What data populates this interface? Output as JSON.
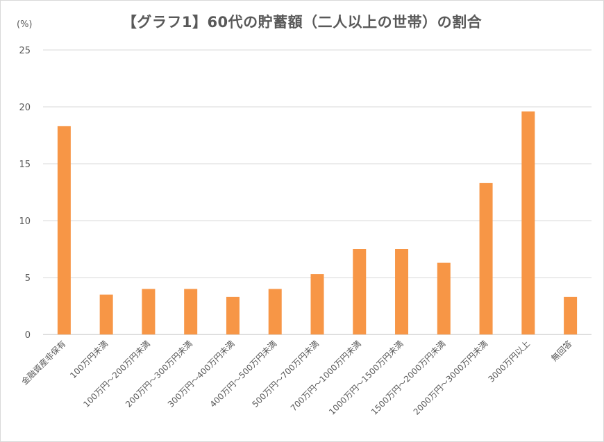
{
  "chart_data": {
    "type": "bar",
    "title": "【グラフ1】60代の貯蓄額（二人以上の世帯）の割合",
    "unit_label": "(%)",
    "categories": [
      "金融資産非保有",
      "100万円未満",
      "100万円～200万円未満",
      "200万円～300万円未満",
      "300万円～400万円未満",
      "400万円～500万円未満",
      "500万円～700万円未満",
      "700万円～1000万円未満",
      "1000万円～1500万円未満",
      "1500万円～2000万円未満",
      "2000万円～3000万円未満",
      "3000万円以上",
      "無回答"
    ],
    "values": [
      18.3,
      3.5,
      4.0,
      4.0,
      3.3,
      4.0,
      5.3,
      7.5,
      7.5,
      6.3,
      13.3,
      19.6,
      3.3
    ],
    "ylim": [
      0,
      25
    ],
    "yticks": [
      "0",
      "5",
      "10",
      "15",
      "20",
      "25"
    ],
    "bar_color": "#f79646",
    "grid": true
  }
}
